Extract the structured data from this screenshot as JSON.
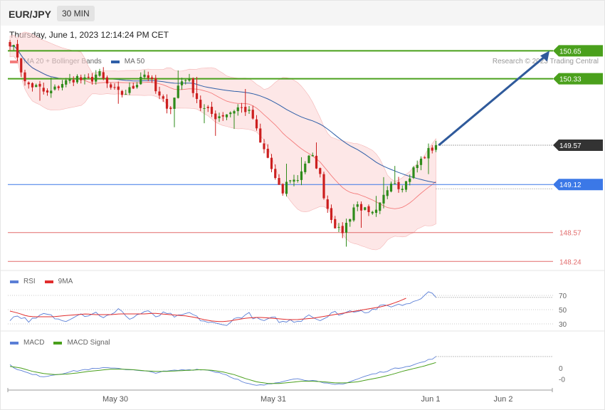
{
  "header": {
    "symbol": "EUR/JPY",
    "timeframe": "30 MIN",
    "datetime": "Thursday, June 1, 2023 12:14:24 PM CET",
    "credit": "Research © 2023 Trading Central"
  },
  "colors": {
    "bollinger": "#f47c7c",
    "ma50": "#2f5fa8",
    "resistance": "#4aa01c",
    "current": "#333333",
    "pivot": "#3b78e7",
    "support": "#e26b6b",
    "up_candle": "#2e8b1a",
    "down_candle": "#cc1f1f",
    "arrow": "#2f5a9b",
    "rsi": "#5b7fd6",
    "rsi_ma": "#e12d2d",
    "macd": "#5b7fd6",
    "macd_signal": "#4aa01c"
  },
  "legends": {
    "main": [
      {
        "label": "MA 20 + Bollinger Bands",
        "color": "#f47c7c"
      },
      {
        "label": "MA 50",
        "color": "#2f5fa8"
      }
    ],
    "rsi": [
      {
        "label": "RSI",
        "color": "#5b7fd6"
      },
      {
        "label": "9MA",
        "color": "#e12d2d"
      }
    ],
    "macd": [
      {
        "label": "MACD",
        "color": "#5b7fd6"
      },
      {
        "label": "MACD Signal",
        "color": "#4aa01c"
      }
    ]
  },
  "chart_data": [
    {
      "type": "candlestick",
      "title": "EUR/JPY 30 MIN",
      "ylim": [
        148.12,
        150.84
      ],
      "x_labels": [
        "May 30",
        "May 31",
        "Jun 1",
        "Jun 2"
      ],
      "key_levels": [
        {
          "value": 150.65,
          "label": "150.65",
          "kind": "resistance"
        },
        {
          "value": 150.33,
          "label": "150.33",
          "kind": "resistance"
        },
        {
          "value": 149.57,
          "label": "149.57",
          "kind": "current"
        },
        {
          "value": 149.12,
          "label": "149.12",
          "kind": "pivot"
        },
        {
          "value": 148.57,
          "label": "148.57",
          "kind": "support"
        },
        {
          "value": 148.24,
          "label": "148.24",
          "kind": "support"
        }
      ],
      "candles_anchor_closes": [
        150.75,
        150.6,
        150.28,
        150.25,
        150.22,
        150.15,
        150.2,
        150.28,
        150.3,
        150.35,
        150.3,
        150.32,
        150.4,
        150.28,
        150.2,
        150.15,
        150.18,
        150.25,
        150.4,
        150.35,
        150.15,
        150.05,
        150.0,
        150.28,
        150.35,
        150.2,
        150.0,
        149.95,
        149.9,
        149.92,
        149.95,
        150.0,
        149.98,
        149.9,
        149.6,
        149.45,
        149.2,
        149.0,
        149.2,
        149.15,
        149.35,
        149.45,
        149.3,
        148.9,
        148.7,
        148.55,
        148.7,
        148.9,
        148.85,
        148.75,
        148.8,
        149.0,
        149.2,
        149.1,
        149.15,
        149.3,
        149.4,
        149.5,
        149.57
      ],
      "projection": {
        "from": 149.57,
        "to": 150.65,
        "direction": "up"
      }
    },
    {
      "type": "line",
      "title": "RSI",
      "ylim": [
        20,
        85
      ],
      "y_ticks": [
        70,
        50,
        30
      ],
      "series": [
        {
          "name": "RSI",
          "anchors": [
            37,
            42,
            35,
            36,
            44,
            40,
            34,
            38,
            45,
            42,
            46,
            40,
            42,
            52,
            36,
            43,
            48,
            40,
            44,
            42,
            39,
            46,
            38,
            33,
            30,
            28,
            34,
            40,
            44,
            36,
            34,
            38,
            32,
            35,
            34,
            44,
            37,
            38,
            46,
            44,
            48,
            50,
            47,
            52,
            55,
            56,
            57,
            60,
            66,
            75,
            70
          ]
        },
        {
          "name": "9MA",
          "anchors": [
            48,
            45,
            41,
            40,
            40,
            40,
            41,
            42,
            43,
            44,
            43,
            43,
            43,
            44,
            44,
            44,
            44,
            45,
            44,
            43,
            42,
            41,
            39,
            36,
            34,
            33,
            34,
            36,
            38,
            39,
            39,
            38,
            37,
            36,
            36,
            37,
            38,
            40,
            42,
            44,
            46,
            48,
            50,
            52,
            54,
            57,
            61,
            66
          ]
        }
      ]
    },
    {
      "type": "line",
      "title": "MACD",
      "ylim": [
        -0.4,
        0.35
      ],
      "y_ticks": [
        0,
        -0.2
      ],
      "y_tick_labels": [
        "0",
        "-0"
      ],
      "series": [
        {
          "name": "MACD",
          "anchors": [
            0.05,
            -0.05,
            -0.12,
            -0.15,
            -0.12,
            -0.08,
            -0.05,
            -0.02,
            -0.01,
            0.01,
            -0.01,
            -0.04,
            -0.06,
            -0.08,
            -0.06,
            -0.04,
            -0.03,
            -0.02,
            -0.05,
            -0.1,
            -0.18,
            -0.28,
            -0.32,
            -0.3,
            -0.25,
            -0.2,
            -0.2,
            -0.23,
            -0.28,
            -0.3,
            -0.27,
            -0.2,
            -0.13,
            -0.08,
            -0.03,
            0.02,
            0.06,
            0.12,
            0.2
          ]
        },
        {
          "name": "MACD Signal",
          "anchors": [
            0.03,
            0.0,
            -0.06,
            -0.1,
            -0.12,
            -0.11,
            -0.09,
            -0.06,
            -0.04,
            -0.02,
            -0.02,
            -0.03,
            -0.05,
            -0.06,
            -0.06,
            -0.05,
            -0.04,
            -0.03,
            -0.04,
            -0.07,
            -0.12,
            -0.19,
            -0.25,
            -0.28,
            -0.28,
            -0.26,
            -0.24,
            -0.24,
            -0.25,
            -0.27,
            -0.27,
            -0.25,
            -0.21,
            -0.17,
            -0.12,
            -0.06,
            -0.01,
            0.04,
            0.1
          ]
        }
      ]
    }
  ]
}
